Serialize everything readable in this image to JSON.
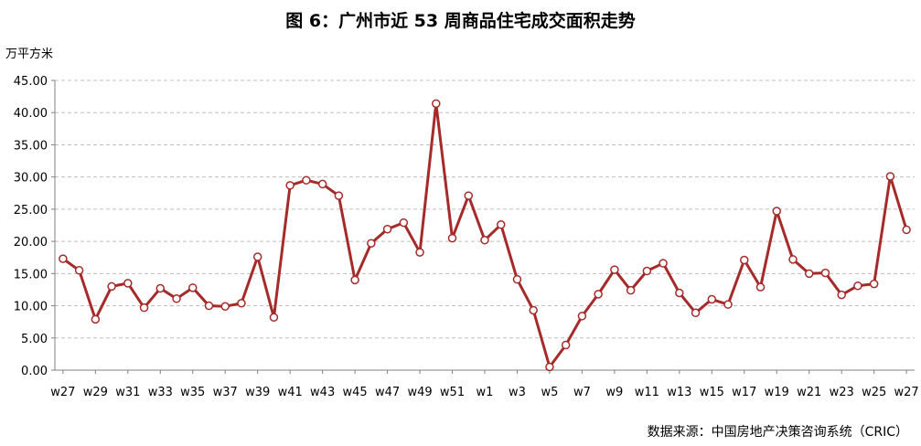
{
  "title": "图 6：广州市近 53 周商品住宅成交面积走势",
  "unit": "万平方米",
  "source": "数据来源：中国房地产决策咨询系统（CRIC）",
  "colors": {
    "line": "#a52a2a",
    "grid": "#bfbfbf",
    "marker_fill": "#ffffff"
  },
  "chart_data": {
    "type": "line",
    "title": "图 6：广州市近 53 周商品住宅成交面积走势",
    "ylabel": "万平方米",
    "ylim": [
      0,
      45
    ],
    "yticks": [
      "0.00",
      "5.00",
      "10.00",
      "15.00",
      "20.00",
      "25.00",
      "30.00",
      "35.00",
      "40.00",
      "45.00"
    ],
    "grid": "horizontal dashed",
    "legend": "none",
    "x": [
      "w27",
      "w28",
      "w29",
      "w30",
      "w31",
      "w32",
      "w33",
      "w34",
      "w35",
      "w36",
      "w37",
      "w38",
      "w39",
      "w40",
      "w41",
      "w42",
      "w43",
      "w44",
      "w45",
      "w46",
      "w47",
      "w48",
      "w49",
      "w50",
      "w51",
      "w52",
      "w1",
      "w2",
      "w3",
      "w4",
      "w5",
      "w6",
      "w7",
      "w8",
      "w9",
      "w10",
      "w11",
      "w12",
      "w13",
      "w14",
      "w15",
      "w16",
      "w17",
      "w18",
      "w19",
      "w20",
      "w21",
      "w22",
      "w23",
      "w24",
      "w25",
      "w26",
      "w27"
    ],
    "xtick_labels": [
      "w27",
      "w29",
      "w31",
      "w33",
      "w35",
      "w37",
      "w39",
      "w41",
      "w43",
      "w45",
      "w47",
      "w49",
      "w51",
      "w1",
      "w3",
      "w5",
      "w7",
      "w9",
      "w11",
      "w13",
      "w15",
      "w17",
      "w19",
      "w21",
      "w23",
      "w25",
      "w27"
    ],
    "series": [
      {
        "values": [
          17.3,
          15.5,
          7.9,
          13.0,
          13.5,
          9.7,
          12.7,
          11.1,
          12.8,
          10.0,
          9.9,
          10.4,
          17.6,
          8.2,
          28.7,
          29.5,
          28.9,
          27.1,
          14.0,
          19.7,
          21.9,
          22.9,
          18.3,
          41.4,
          20.5,
          27.1,
          20.2,
          22.6,
          14.1,
          9.3,
          0.5,
          3.9,
          8.4,
          11.8,
          15.6,
          12.4,
          15.4,
          16.6,
          12.0,
          8.9,
          11.0,
          10.2,
          17.1,
          12.9,
          24.7,
          17.2,
          15.0,
          15.1,
          11.7,
          13.1,
          13.4,
          30.1,
          21.8
        ]
      }
    ]
  }
}
